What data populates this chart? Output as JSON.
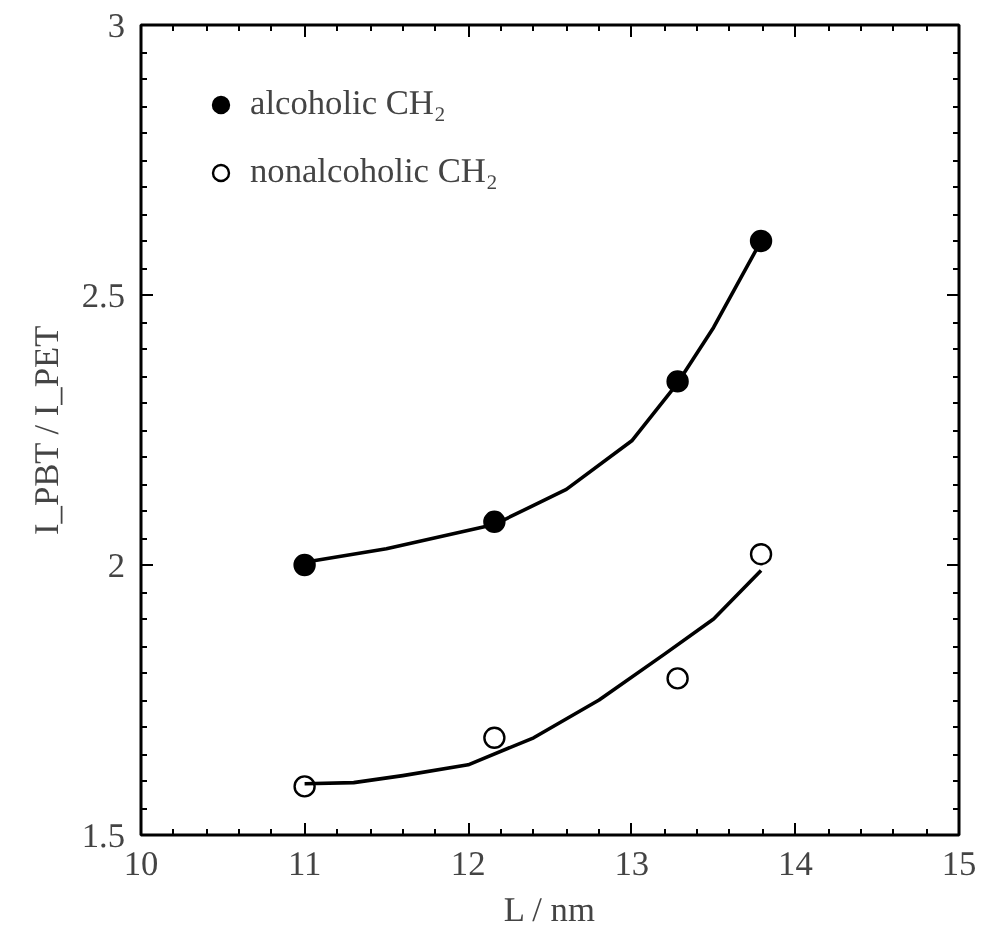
{
  "chart_data": {
    "type": "scatter",
    "xlabel": "L / nm",
    "ylabel": "I_PBT / I_PET",
    "xlim": [
      10,
      15
    ],
    "xticks": [
      10,
      11,
      12,
      13,
      14,
      15
    ],
    "ylim": [
      1.5,
      3
    ],
    "yticks": [
      1.5,
      2,
      2.5,
      3
    ],
    "grid": false,
    "legend": "top left",
    "series": [
      {
        "name": "alcoholic CH₂",
        "marker": "circle",
        "color": "#000000",
        "x": [
          11.0,
          12.16,
          13.28,
          13.79
        ],
        "values": [
          2.0,
          2.08,
          2.34,
          2.6
        ]
      },
      {
        "name": "nonalcoholic CH₂",
        "marker": "circle",
        "color": "#ffffff",
        "x": [
          11.0,
          12.16,
          13.28,
          13.79
        ],
        "values": [
          1.59,
          1.68,
          1.79,
          2.02
        ]
      },
      {
        "type": "line",
        "color": "#000000",
        "x": [
          11.0,
          11.5,
          12.16,
          12.6,
          13.0,
          13.28,
          13.5,
          13.79
        ],
        "values": [
          2.005,
          2.03,
          2.075,
          2.14,
          2.23,
          2.337,
          2.44,
          2.6
        ]
      },
      {
        "type": "line",
        "color": "#000000",
        "x": [
          11.0,
          11.3,
          11.6,
          12.0,
          12.4,
          12.8,
          13.2,
          13.5,
          13.79
        ],
        "values": [
          1.595,
          1.597,
          1.61,
          1.63,
          1.68,
          1.75,
          1.835,
          1.9,
          1.99
        ]
      }
    ]
  }
}
